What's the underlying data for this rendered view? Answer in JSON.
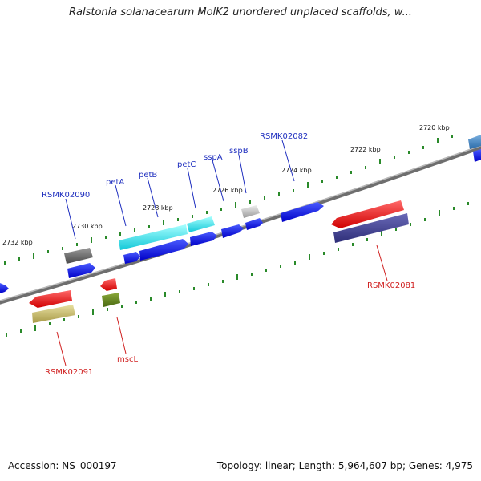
{
  "title": "Ralstonia solanacearum MolK2 unordered unplaced scaffolds, w...",
  "footer": {
    "accession": "Accession: NS_000197",
    "topology": "Topology: linear; Length: 5,964,607 bp; Genes: 4,975"
  },
  "scale_labels": [
    "2720 kbp",
    "2722 kbp",
    "2724 kbp",
    "2726 kbp",
    "2728 kbp",
    "2730 kbp",
    "2732 kbp"
  ],
  "gene_labels_forward": [
    "RSMK02082",
    "sspB",
    "sspA",
    "petC",
    "petB",
    "petA",
    "RSMK02090"
  ],
  "gene_labels_reverse": [
    "RSMK02081",
    "RSMK02091",
    "mscL"
  ],
  "colors": {
    "backbone": "#7a7a7a",
    "tick": "#2a8a2a",
    "blue_label": "#1f2fbf",
    "red_label": "#d02020"
  }
}
